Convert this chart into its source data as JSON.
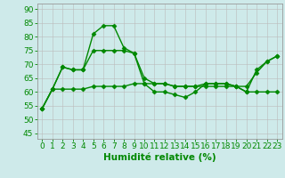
{
  "line_top": {
    "x": [
      0,
      1,
      2,
      3,
      4,
      5,
      6,
      7,
      8,
      9,
      10,
      11,
      12,
      13,
      14,
      15,
      16,
      17,
      18,
      19,
      20,
      21,
      22,
      23
    ],
    "y": [
      54,
      61,
      69,
      68,
      68,
      81,
      84,
      84,
      76,
      74,
      63,
      60,
      60,
      59,
      58,
      60,
      63,
      63,
      63,
      62,
      60,
      68,
      71,
      73
    ]
  },
  "line_mid": {
    "x": [
      0,
      1,
      2,
      3,
      4,
      5,
      6,
      7,
      8,
      9,
      10,
      11,
      12,
      13,
      14,
      15,
      16,
      17,
      18,
      19,
      20,
      21,
      22,
      23
    ],
    "y": [
      54,
      61,
      69,
      68,
      68,
      75,
      75,
      75,
      75,
      74,
      65,
      63,
      63,
      62,
      62,
      62,
      62,
      62,
      62,
      62,
      62,
      67,
      71,
      73
    ]
  },
  "line_bot": {
    "x": [
      0,
      1,
      2,
      3,
      4,
      5,
      6,
      7,
      8,
      9,
      10,
      11,
      12,
      13,
      14,
      15,
      16,
      17,
      18,
      19,
      20,
      21,
      22,
      23
    ],
    "y": [
      54,
      61,
      61,
      61,
      61,
      62,
      62,
      62,
      62,
      63,
      63,
      63,
      63,
      62,
      62,
      62,
      63,
      63,
      63,
      62,
      60,
      60,
      60,
      60
    ]
  },
  "color": "#008800",
  "marker": "D",
  "markersize": 2.5,
  "linewidth": 1.0,
  "xlabel": "Humidité relative (%)",
  "xlabel_color": "#008800",
  "xlabel_fontsize": 7.5,
  "yticks": [
    45,
    50,
    55,
    60,
    65,
    70,
    75,
    80,
    85,
    90
  ],
  "xlim": [
    -0.5,
    23.5
  ],
  "ylim": [
    43,
    92
  ],
  "bg_color": "#ceeaea",
  "grid_color": "#bbbbbb",
  "tick_fontsize": 6.5,
  "tick_color": "#008800"
}
